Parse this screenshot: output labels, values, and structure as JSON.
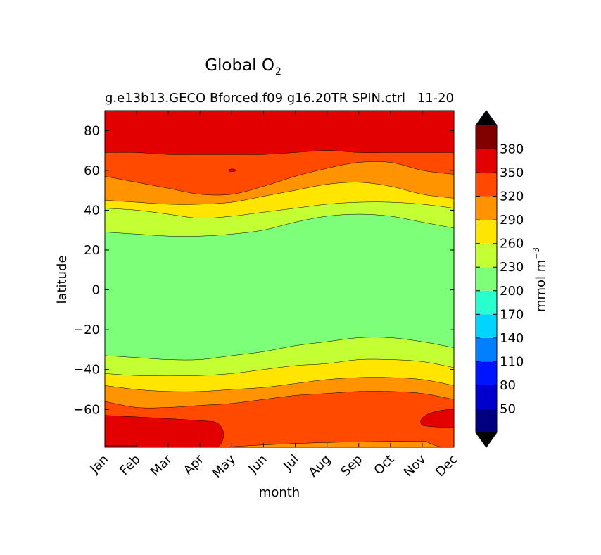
{
  "chart_data": {
    "type": "contour",
    "title_main": "Global O",
    "title_sub": "2",
    "subtitle_left": "g.e13b13.GECO Bforced.f09 g16.20TR SPIN.ctrl",
    "subtitle_right": "11-20",
    "xlabel": "month",
    "ylabel": "latitude",
    "x_ticks": [
      "Jan",
      "Feb",
      "Mar",
      "Apr",
      "May",
      "Jun",
      "Jul",
      "Aug",
      "Sep",
      "Oct",
      "Nov",
      "Dec"
    ],
    "y_ticks": [
      80,
      60,
      40,
      20,
      0,
      -20,
      -40,
      -60
    ],
    "ylim": [
      -79,
      90
    ],
    "colorbar": {
      "label": "mmol m",
      "label_exp": "−3",
      "ticks": [
        50,
        80,
        110,
        140,
        170,
        200,
        230,
        260,
        290,
        320,
        350,
        380
      ],
      "levels": [
        20,
        50,
        80,
        110,
        140,
        170,
        200,
        230,
        260,
        290,
        320,
        350,
        380,
        410
      ],
      "colors": [
        "#000080",
        "#0000cd",
        "#0014ff",
        "#0080ff",
        "#00d4ff",
        "#29ffce",
        "#7dff7a",
        "#c4ff33",
        "#ffe500",
        "#ff9400",
        "#ff4a00",
        "#e30000",
        "#800000"
      ],
      "under_color": "#000000",
      "over_color": "#000000"
    },
    "latitude_bands": [
      {
        "band": "200-230",
        "color": "#7dff7a",
        "south_edge": [
          -33,
          -34,
          -35,
          -35,
          -33,
          -31,
          -28,
          -26,
          -24,
          -24,
          -26,
          -29
        ],
        "north_edge": [
          29,
          28,
          27,
          27,
          28,
          30,
          34,
          37,
          38,
          37,
          34,
          31
        ]
      },
      {
        "band": "230-260",
        "color": "#c4ff33",
        "south_edge": [
          -42,
          -43,
          -43,
          -43,
          -42,
          -40,
          -38,
          -37,
          -35,
          -35,
          -36,
          -39
        ],
        "north_edge": [
          41,
          40,
          38,
          36,
          37,
          39,
          41,
          43,
          44,
          44,
          43,
          41
        ]
      },
      {
        "band": "260-290",
        "color": "#ffe500",
        "south_edge": [
          -48,
          -50,
          -51,
          -51,
          -50,
          -49,
          -47,
          -45,
          -44,
          -44,
          -45,
          -48
        ],
        "north_edge": [
          45,
          44,
          43,
          43,
          44,
          47,
          50,
          53,
          54,
          52,
          48,
          46
        ]
      },
      {
        "band": "290-320",
        "color": "#ff9400",
        "south_edge": [
          -56,
          -59,
          -59,
          -58,
          -57,
          -55,
          -53,
          -52,
          -51,
          -51,
          -52,
          -55
        ],
        "north_edge": [
          57,
          54,
          51,
          48,
          48,
          52,
          57,
          61,
          64,
          64,
          60,
          58
        ]
      },
      {
        "band": "320-350",
        "color": "#ff4a00",
        "north_edge": [
          69,
          69,
          68,
          68,
          68,
          68,
          69,
          70,
          69,
          69,
          69,
          69
        ]
      },
      {
        "band": "350-380",
        "color": "#e30000"
      }
    ]
  }
}
